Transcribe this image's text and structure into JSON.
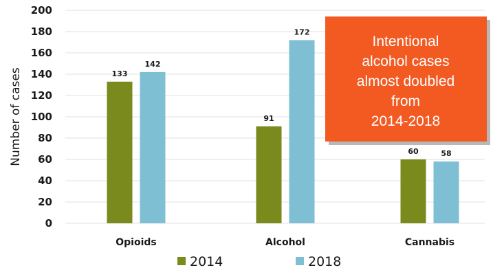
{
  "chart_data": {
    "type": "bar",
    "categories": [
      "Opioids",
      "Alcohol",
      "Cannabis"
    ],
    "series": [
      {
        "name": "2014",
        "color": "#7a8a1d",
        "values": [
          133,
          91,
          60
        ]
      },
      {
        "name": "2018",
        "color": "#7ebfd4",
        "values": [
          142,
          172,
          58
        ]
      }
    ],
    "ylabel": "Number of cases",
    "xlabel": "",
    "ylim": [
      0,
      200
    ],
    "yticks": [
      0,
      20,
      40,
      60,
      80,
      100,
      120,
      140,
      160,
      180,
      200
    ],
    "grid": true,
    "legend_position": "bottom",
    "data_labels": true,
    "annotation": {
      "lines": [
        "Intentional",
        "alcohol cases",
        "almost doubled",
        "from",
        "2014-2018"
      ],
      "background": "#f25a22",
      "text_color": "#ffffff"
    }
  }
}
